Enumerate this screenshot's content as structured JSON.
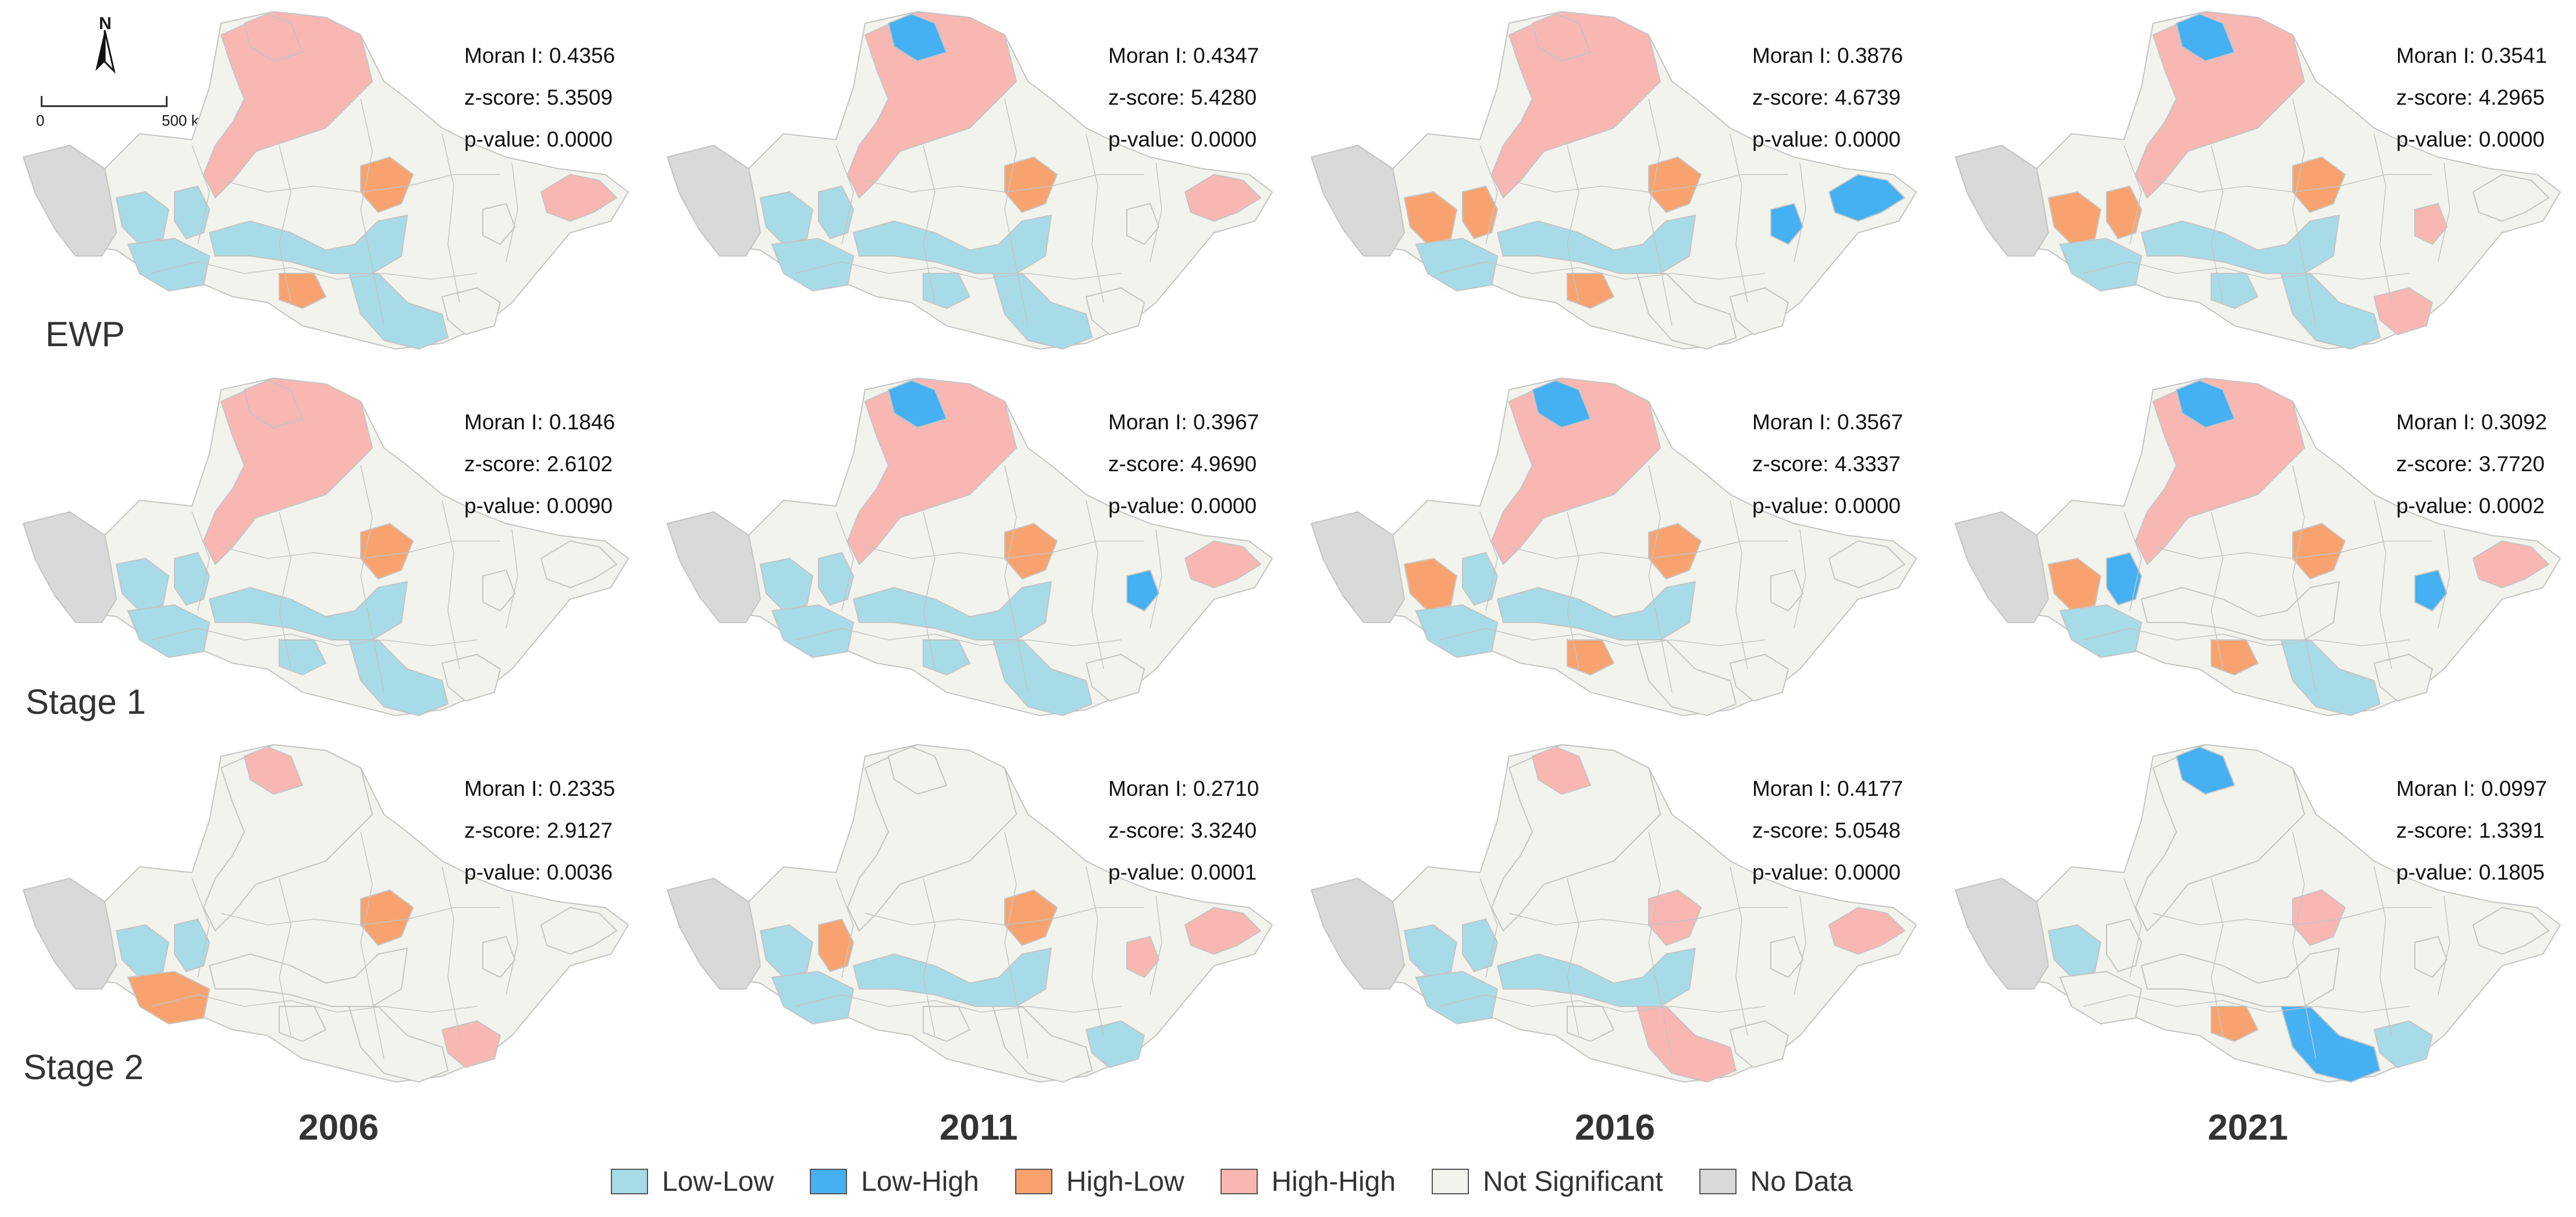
{
  "figure": {
    "years": [
      "2006",
      "2011",
      "2016",
      "2021"
    ],
    "rows": [
      "EWP",
      "Stage 1",
      "Stage 2"
    ],
    "north_label": "N",
    "scale": {
      "start": "0",
      "end": "500 km"
    }
  },
  "colors": {
    "low_low": "#a8dbe8",
    "low_high": "#45b0f2",
    "high_low": "#f8a36f",
    "high_high": "#f9b7b4",
    "not_significant": "#f3f3ee",
    "no_data": "#d9d9d9",
    "border": "#c4c4c4"
  },
  "legend": [
    {
      "label": "Low-Low",
      "color": "#a8dbe8"
    },
    {
      "label": "Low-High",
      "color": "#45b0f2"
    },
    {
      "label": "High-Low",
      "color": "#f8a36f"
    },
    {
      "label": "High-High",
      "color": "#f9b7b4"
    },
    {
      "label": "Not Significant",
      "color": "#f3f3ee"
    },
    {
      "label": "No Data",
      "color": "#d9d9d9"
    }
  ],
  "panels": [
    {
      "row": "EWP",
      "year": "2006",
      "moran_label": "Moran I: 0.4356",
      "z_label": "z-score: 5.3509",
      "p_label": "p-value: 0.0000",
      "clusters": {
        "north": "high_high",
        "north_small": "high_high",
        "mid_west": "low_low",
        "mid_west2": "low_low",
        "center_east": "high_low",
        "center_band": "low_low",
        "south_west": "low_low",
        "south_center": "high_low",
        "south_low": "low_low",
        "south_east": "not_significant",
        "east_small": "not_significant",
        "far_east": "high_high"
      }
    },
    {
      "row": "EWP",
      "year": "2011",
      "moran_label": "Moran I: 0.4347",
      "z_label": "z-score: 5.4280",
      "p_label": "p-value: 0.0000",
      "clusters": {
        "north": "high_high",
        "north_small": "low_high",
        "mid_west": "low_low",
        "mid_west2": "low_low",
        "center_east": "high_low",
        "center_band": "low_low",
        "south_west": "low_low",
        "south_center": "low_low",
        "south_low": "low_low",
        "south_east": "not_significant",
        "east_small": "not_significant",
        "far_east": "high_high"
      }
    },
    {
      "row": "EWP",
      "year": "2016",
      "moran_label": "Moran I: 0.3876",
      "z_label": "z-score: 4.6739",
      "p_label": "p-value: 0.0000",
      "clusters": {
        "north": "high_high",
        "north_small": "high_high",
        "mid_west": "high_low",
        "mid_west2": "high_low",
        "center_east": "high_low",
        "center_band": "low_low",
        "south_west": "low_low",
        "south_center": "high_low",
        "south_low": "not_significant",
        "south_east": "not_significant",
        "east_small": "low_high",
        "far_east": "low_high"
      }
    },
    {
      "row": "EWP",
      "year": "2021",
      "moran_label": "Moran I: 0.3541",
      "z_label": "z-score: 4.2965",
      "p_label": "p-value: 0.0000",
      "clusters": {
        "north": "high_high",
        "north_small": "low_high",
        "mid_west": "high_low",
        "mid_west2": "high_low",
        "center_east": "high_low",
        "center_band": "low_low",
        "south_west": "low_low",
        "south_center": "low_low",
        "south_low": "low_low",
        "south_east": "high_high",
        "east_small": "high_high",
        "far_east": "not_significant"
      }
    },
    {
      "row": "Stage 1",
      "year": "2006",
      "moran_label": "Moran I: 0.1846",
      "z_label": "z-score: 2.6102",
      "p_label": "p-value: 0.0090",
      "clusters": {
        "north": "high_high",
        "north_small": "high_high",
        "mid_west": "low_low",
        "mid_west2": "low_low",
        "center_east": "high_low",
        "center_band": "low_low",
        "south_west": "low_low",
        "south_center": "low_low",
        "south_low": "low_low",
        "south_east": "not_significant",
        "east_small": "not_significant",
        "far_east": "not_significant"
      }
    },
    {
      "row": "Stage 1",
      "year": "2011",
      "moran_label": "Moran I: 0.3967",
      "z_label": "z-score: 4.9690",
      "p_label": "p-value: 0.0000",
      "clusters": {
        "north": "high_high",
        "north_small": "low_high",
        "mid_west": "low_low",
        "mid_west2": "low_low",
        "center_east": "high_low",
        "center_band": "low_low",
        "south_west": "low_low",
        "south_center": "low_low",
        "south_low": "low_low",
        "south_east": "not_significant",
        "east_small": "low_high",
        "far_east": "high_high"
      }
    },
    {
      "row": "Stage 1",
      "year": "2016",
      "moran_label": "Moran I: 0.3567",
      "z_label": "z-score: 4.3337",
      "p_label": "p-value: 0.0000",
      "clusters": {
        "north": "high_high",
        "north_small": "low_high",
        "mid_west": "high_low",
        "mid_west2": "low_low",
        "center_east": "high_low",
        "center_band": "low_low",
        "south_west": "low_low",
        "south_center": "high_low",
        "south_low": "not_significant",
        "south_east": "not_significant",
        "east_small": "not_significant",
        "far_east": "not_significant"
      }
    },
    {
      "row": "Stage 1",
      "year": "2021",
      "moran_label": "Moran I: 0.3092",
      "z_label": "z-score: 3.7720",
      "p_label": "p-value: 0.0002",
      "clusters": {
        "north": "high_high",
        "north_small": "low_high",
        "mid_west": "high_low",
        "mid_west2": "low_high",
        "center_east": "high_low",
        "center_band": "not_significant",
        "south_west": "low_low",
        "south_center": "high_low",
        "south_low": "low_low",
        "south_east": "not_significant",
        "east_small": "low_high",
        "far_east": "high_high"
      }
    },
    {
      "row": "Stage 2",
      "year": "2006",
      "moran_label": "Moran I: 0.2335",
      "z_label": "z-score: 2.9127",
      "p_label": "p-value: 0.0036",
      "clusters": {
        "north": "not_significant",
        "north_small": "high_high",
        "mid_west": "low_low",
        "mid_west2": "low_low",
        "center_east": "high_low",
        "center_band": "not_significant",
        "south_west": "high_low",
        "south_center": "not_significant",
        "south_low": "not_significant",
        "south_east": "high_high",
        "east_small": "not_significant",
        "far_east": "not_significant"
      }
    },
    {
      "row": "Stage 2",
      "year": "2011",
      "moran_label": "Moran I: 0.2710",
      "z_label": "z-score: 3.3240",
      "p_label": "p-value: 0.0001",
      "clusters": {
        "north": "not_significant",
        "north_small": "not_significant",
        "mid_west": "low_low",
        "mid_west2": "high_low",
        "center_east": "high_low",
        "center_band": "low_low",
        "south_west": "low_low",
        "south_center": "not_significant",
        "south_low": "not_significant",
        "south_east": "low_low",
        "east_small": "high_high",
        "far_east": "high_high"
      }
    },
    {
      "row": "Stage 2",
      "year": "2016",
      "moran_label": "Moran I: 0.4177",
      "z_label": "z-score: 5.0548",
      "p_label": "p-value: 0.0000",
      "clusters": {
        "north": "not_significant",
        "north_small": "high_high",
        "mid_west": "low_low",
        "mid_west2": "low_low",
        "center_east": "high_high",
        "center_band": "low_low",
        "south_west": "low_low",
        "south_center": "not_significant",
        "south_low": "high_high",
        "south_east": "not_significant",
        "east_small": "not_significant",
        "far_east": "high_high"
      }
    },
    {
      "row": "Stage 2",
      "year": "2021",
      "moran_label": "Moran I: 0.0997",
      "z_label": "z-score: 1.3391",
      "p_label": "p-value: 0.1805",
      "clusters": {
        "north": "not_significant",
        "north_small": "low_high",
        "mid_west": "low_low",
        "mid_west2": "not_significant",
        "center_east": "high_high",
        "center_band": "not_significant",
        "south_west": "not_significant",
        "south_center": "high_low",
        "south_low": "low_high",
        "south_east": "low_low",
        "east_small": "not_significant",
        "far_east": "not_significant"
      }
    }
  ]
}
